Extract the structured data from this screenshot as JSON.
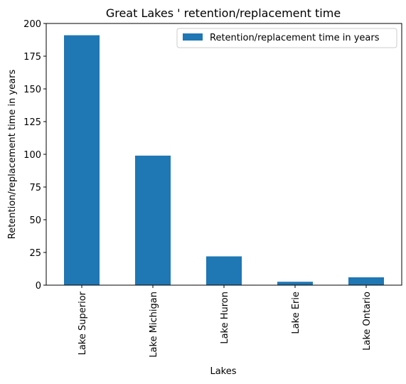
{
  "chart_data": {
    "type": "bar",
    "title": "Great Lakes ' retention/replacement time",
    "xlabel": "Lakes",
    "ylabel": "Retention/replacement time in years",
    "categories": [
      "Lake Superior",
      "Lake Michigan",
      "Lake Huron",
      "Lake Erie",
      "Lake Ontario"
    ],
    "series": [
      {
        "name": "Retention/replacement time in years",
        "values": [
          191,
          99,
          22,
          2.6,
          6
        ],
        "color": "#1f77b4"
      }
    ],
    "ylim": [
      0,
      200
    ],
    "yticks": [
      0,
      25,
      50,
      75,
      100,
      125,
      150,
      175,
      200
    ],
    "grid": false,
    "legend": "top-right"
  }
}
